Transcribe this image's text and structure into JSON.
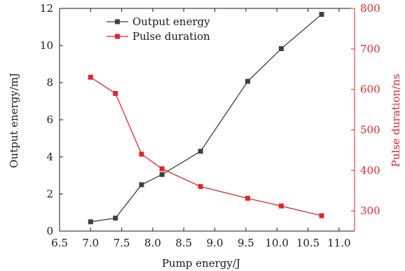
{
  "chart_data": {
    "type": "line",
    "title": "",
    "xlabel": "Pump energy/J",
    "ylabel": "Output energy/mJ",
    "ylabel_right": "Pulse duration/ns",
    "xlim": [
      6.5,
      11.25
    ],
    "ylim": [
      0,
      12
    ],
    "ylim_right": [
      250,
      800
    ],
    "x_ticks": [
      6.5,
      7.0,
      7.5,
      8.0,
      8.5,
      9.0,
      9.5,
      10.0,
      10.5,
      11.0
    ],
    "x_tick_labels": [
      "6.5",
      "7.0",
      "7.5",
      "8.0",
      "8.5",
      "9.0",
      "9.5",
      "10.0",
      "10.5",
      "11.0"
    ],
    "y_ticks": [
      0,
      2,
      4,
      6,
      8,
      10,
      12
    ],
    "y_tick_labels": [
      "0",
      "2",
      "4",
      "6",
      "8",
      "10",
      "12"
    ],
    "y_ticks_right": [
      300,
      400,
      500,
      600,
      700,
      800
    ],
    "y_tick_labels_right": [
      "300",
      "400",
      "500",
      "600",
      "700",
      "800"
    ],
    "grid": false,
    "legend_position": "top-center",
    "series": [
      {
        "name": "Output energy",
        "axis": "left",
        "color": "#404040",
        "marker": "square",
        "x": [
          7.0,
          7.4,
          7.82,
          8.15,
          8.77,
          9.53,
          10.07,
          10.72
        ],
        "values": [
          0.5,
          0.7,
          2.5,
          3.05,
          4.3,
          8.07,
          9.83,
          11.68
        ]
      },
      {
        "name": "Pulse duration",
        "axis": "right",
        "color": "#e0262b",
        "marker": "square",
        "x": [
          7.0,
          7.4,
          7.82,
          8.15,
          8.77,
          9.53,
          10.07,
          10.72
        ],
        "values": [
          630,
          590,
          440,
          404,
          360,
          331,
          312,
          288
        ]
      }
    ]
  }
}
